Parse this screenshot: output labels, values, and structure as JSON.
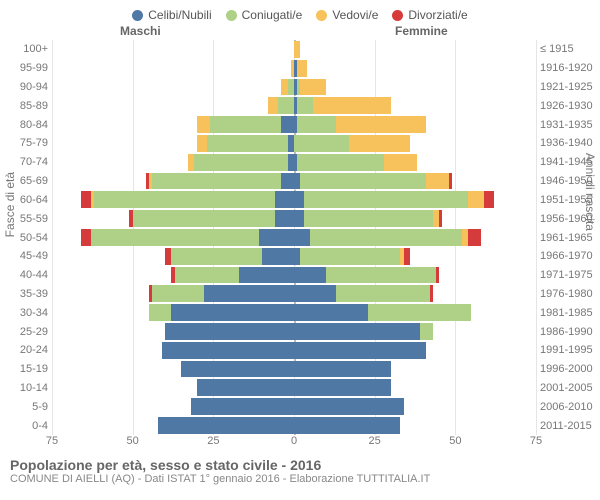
{
  "legend": [
    {
      "label": "Celibi/Nubili",
      "color": "#4f78a5"
    },
    {
      "label": "Coniugati/e",
      "color": "#aed087"
    },
    {
      "label": "Vedovi/e",
      "color": "#f7c15b"
    },
    {
      "label": "Divorziati/e",
      "color": "#d63b3b"
    }
  ],
  "header_male": "Maschi",
  "header_female": "Femmine",
  "ylabel_left": "Fasce di età",
  "ylabel_right": "Anni di nascita",
  "xticks": [
    75,
    50,
    25,
    0,
    25,
    50,
    75
  ],
  "xmax": 75,
  "age_labels": [
    "100+",
    "95-99",
    "90-94",
    "85-89",
    "80-84",
    "75-79",
    "70-74",
    "65-69",
    "60-64",
    "55-59",
    "50-54",
    "45-49",
    "40-44",
    "35-39",
    "30-34",
    "25-29",
    "20-24",
    "15-19",
    "10-14",
    "5-9",
    "0-4"
  ],
  "birth_labels": [
    "≤ 1915",
    "1916-1920",
    "1921-1925",
    "1926-1930",
    "1931-1935",
    "1936-1940",
    "1941-1945",
    "1946-1950",
    "1951-1955",
    "1956-1960",
    "1961-1965",
    "1966-1970",
    "1971-1975",
    "1976-1980",
    "1981-1985",
    "1986-1990",
    "1991-1995",
    "1996-2000",
    "2001-2005",
    "2006-2010",
    "2011-2015"
  ],
  "data": [
    {
      "m": {
        "cel": 0,
        "con": 0,
        "ved": 0,
        "div": 0
      },
      "f": {
        "cel": 0,
        "con": 0,
        "ved": 2,
        "div": 0
      }
    },
    {
      "m": {
        "cel": 0,
        "con": 0,
        "ved": 1,
        "div": 0
      },
      "f": {
        "cel": 1,
        "con": 0,
        "ved": 3,
        "div": 0
      }
    },
    {
      "m": {
        "cel": 0,
        "con": 2,
        "ved": 2,
        "div": 0
      },
      "f": {
        "cel": 1,
        "con": 1,
        "ved": 8,
        "div": 0
      }
    },
    {
      "m": {
        "cel": 0,
        "con": 5,
        "ved": 3,
        "div": 0
      },
      "f": {
        "cel": 1,
        "con": 5,
        "ved": 24,
        "div": 0
      }
    },
    {
      "m": {
        "cel": 4,
        "con": 22,
        "ved": 4,
        "div": 0
      },
      "f": {
        "cel": 1,
        "con": 12,
        "ved": 28,
        "div": 0
      }
    },
    {
      "m": {
        "cel": 2,
        "con": 25,
        "ved": 3,
        "div": 0
      },
      "f": {
        "cel": 0,
        "con": 17,
        "ved": 19,
        "div": 0
      }
    },
    {
      "m": {
        "cel": 2,
        "con": 29,
        "ved": 2,
        "div": 0
      },
      "f": {
        "cel": 1,
        "con": 27,
        "ved": 10,
        "div": 0
      }
    },
    {
      "m": {
        "cel": 4,
        "con": 40,
        "ved": 1,
        "div": 1
      },
      "f": {
        "cel": 2,
        "con": 39,
        "ved": 7,
        "div": 1
      }
    },
    {
      "m": {
        "cel": 6,
        "con": 56,
        "ved": 1,
        "div": 3
      },
      "f": {
        "cel": 3,
        "con": 51,
        "ved": 5,
        "div": 3
      }
    },
    {
      "m": {
        "cel": 6,
        "con": 44,
        "ved": 0,
        "div": 1
      },
      "f": {
        "cel": 3,
        "con": 40,
        "ved": 2,
        "div": 1
      }
    },
    {
      "m": {
        "cel": 11,
        "con": 52,
        "ved": 0,
        "div": 3
      },
      "f": {
        "cel": 5,
        "con": 47,
        "ved": 2,
        "div": 4
      }
    },
    {
      "m": {
        "cel": 10,
        "con": 28,
        "ved": 0,
        "div": 2
      },
      "f": {
        "cel": 2,
        "con": 31,
        "ved": 1,
        "div": 2
      }
    },
    {
      "m": {
        "cel": 17,
        "con": 20,
        "ved": 0,
        "div": 1
      },
      "f": {
        "cel": 10,
        "con": 34,
        "ved": 0,
        "div": 1
      }
    },
    {
      "m": {
        "cel": 28,
        "con": 16,
        "ved": 0,
        "div": 1
      },
      "f": {
        "cel": 13,
        "con": 29,
        "ved": 0,
        "div": 1
      }
    },
    {
      "m": {
        "cel": 38,
        "con": 7,
        "ved": 0,
        "div": 0
      },
      "f": {
        "cel": 23,
        "con": 32,
        "ved": 0,
        "div": 0
      }
    },
    {
      "m": {
        "cel": 40,
        "con": 0,
        "ved": 0,
        "div": 0
      },
      "f": {
        "cel": 39,
        "con": 4,
        "ved": 0,
        "div": 0
      }
    },
    {
      "m": {
        "cel": 41,
        "con": 0,
        "ved": 0,
        "div": 0
      },
      "f": {
        "cel": 41,
        "con": 0,
        "ved": 0,
        "div": 0
      }
    },
    {
      "m": {
        "cel": 35,
        "con": 0,
        "ved": 0,
        "div": 0
      },
      "f": {
        "cel": 30,
        "con": 0,
        "ved": 0,
        "div": 0
      }
    },
    {
      "m": {
        "cel": 30,
        "con": 0,
        "ved": 0,
        "div": 0
      },
      "f": {
        "cel": 30,
        "con": 0,
        "ved": 0,
        "div": 0
      }
    },
    {
      "m": {
        "cel": 32,
        "con": 0,
        "ved": 0,
        "div": 0
      },
      "f": {
        "cel": 34,
        "con": 0,
        "ved": 0,
        "div": 0
      }
    },
    {
      "m": {
        "cel": 42,
        "con": 0,
        "ved": 0,
        "div": 0
      },
      "f": {
        "cel": 33,
        "con": 0,
        "ved": 0,
        "div": 0
      }
    }
  ],
  "title": "Popolazione per età, sesso e stato civile - 2016",
  "subtitle": "COMUNE DI AIELLI (AQ) - Dati ISTAT 1° gennaio 2016 - Elaborazione TUTTITALIA.IT",
  "colors": {
    "cel": "#4f78a5",
    "con": "#aed087",
    "ved": "#f7c15b",
    "div": "#d63b3b",
    "grid": "#e5e5e5",
    "center": "#bbbbbb",
    "text": "#777777",
    "bg": "#ffffff"
  }
}
